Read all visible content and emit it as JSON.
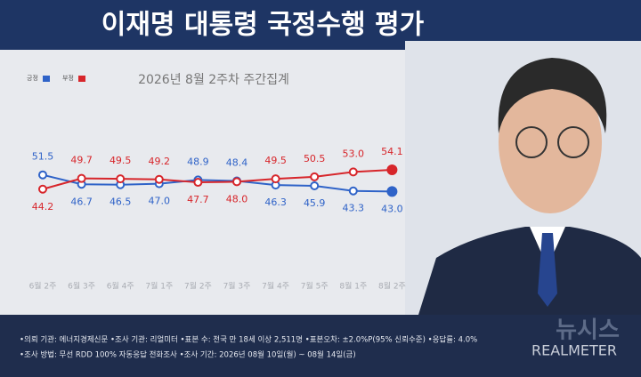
{
  "chart_data": {
    "type": "line",
    "title": "이재명 대통령 국정수행 평가",
    "subtitle": "2026년 8월 2주차 주간집계",
    "categories": [
      "6월 2주",
      "6월 3주",
      "6월 4주",
      "7월 1주",
      "7월 2주",
      "7월 3주",
      "7월 4주",
      "7월 5주",
      "8월 1주",
      "8월 2주"
    ],
    "series": [
      {
        "name": "긍정",
        "color": "#2f63c8",
        "values": [
          51.5,
          46.7,
          46.5,
          47.0,
          48.9,
          48.4,
          46.3,
          45.9,
          43.3,
          43.0
        ],
        "value_labels": [
          "51.5",
          "46.7",
          "46.5",
          "47.0",
          "48.9",
          "48.4",
          "46.3",
          "45.9",
          "43.3",
          "43.0"
        ]
      },
      {
        "name": "부정",
        "color": "#d7262b",
        "values": [
          44.2,
          49.7,
          49.5,
          49.2,
          47.7,
          48.0,
          49.5,
          50.5,
          53.0,
          54.1
        ],
        "value_labels": [
          "44.2",
          "49.7",
          "49.5",
          "49.2",
          "47.7",
          "48.0",
          "49.5",
          "50.5",
          "53.0",
          "54.1"
        ]
      }
    ],
    "ylim": [
      0,
      100
    ],
    "notes": [
      "•의뢰 기관: 에너지경제신문 •조사 기관: 리얼미터 •표본 수: 전국 만 18세 이상 2,511명 •표본오차: ±2.0%P(95% 신뢰수준) •응답률: 4.0%",
      "•조사 방법: 무선 RDD 100% 자동응답 전화조사 •조사 기간: 2026년 08월 10일(월) ~ 08월 14일(금)"
    ],
    "watermark": "뉴시스",
    "source": "REALMETER"
  }
}
